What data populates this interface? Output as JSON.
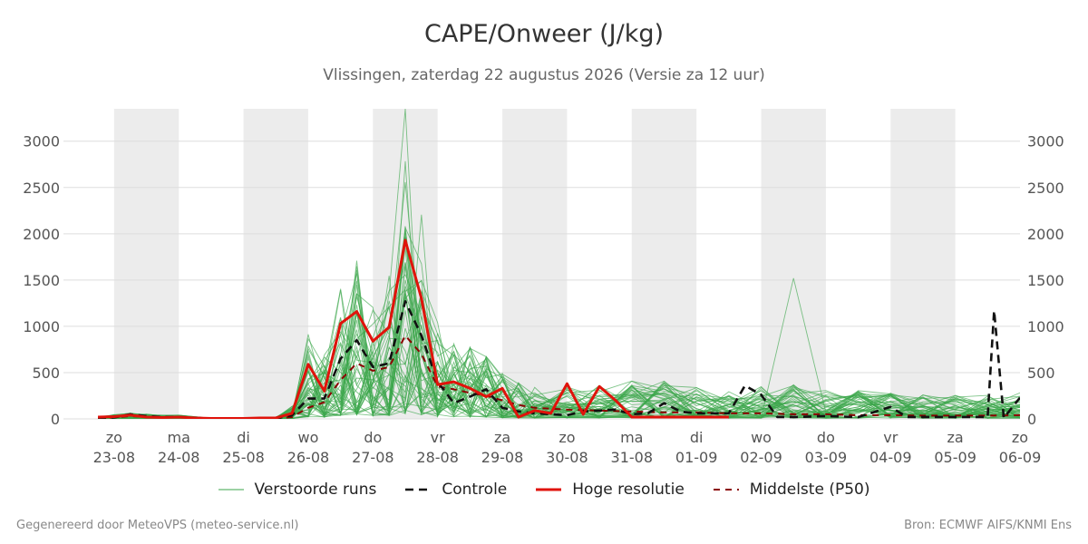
{
  "title": "CAPE/Onweer (J/kg)",
  "subtitle": "Vlissingen, zaterdag 22 augustus 2026 (Versie za 12 uur)",
  "footer_left": "Gegenereerd door MeteoVPS (meteo-service.nl)",
  "footer_right": "Bron: ECMWF AIFS/KNMI Ens",
  "legend": [
    {
      "label": "Verstoorde runs",
      "style": "thin",
      "color": "#3aa64a"
    },
    {
      "label": "Controle",
      "style": "dashed",
      "color": "#111111"
    },
    {
      "label": "Hoge resolutie",
      "style": "solid",
      "color": "#e0130b"
    },
    {
      "label": "Middelste (P50)",
      "style": "dashed",
      "color": "#8b0000"
    }
  ],
  "chart_data": {
    "type": "line",
    "x_unit": "days since 23-08 00:00",
    "xlim": [
      -0.25,
      14.0
    ],
    "ylim": [
      0,
      3350
    ],
    "yticks": [
      0,
      500,
      1000,
      1500,
      2000,
      2500,
      3000
    ],
    "grid": true,
    "shaded_days": [
      0,
      2,
      4,
      6,
      8,
      10,
      12,
      14
    ],
    "x_ticks": [
      {
        "day": "zo",
        "date": "23-08"
      },
      {
        "day": "ma",
        "date": "24-08"
      },
      {
        "day": "di",
        "date": "25-08"
      },
      {
        "day": "wo",
        "date": "26-08"
      },
      {
        "day": "do",
        "date": "27-08"
      },
      {
        "day": "vr",
        "date": "28-08"
      },
      {
        "day": "za",
        "date": "29-08"
      },
      {
        "day": "zo",
        "date": "30-08"
      },
      {
        "day": "ma",
        "date": "31-08"
      },
      {
        "day": "di",
        "date": "01-09"
      },
      {
        "day": "wo",
        "date": "02-09"
      },
      {
        "day": "do",
        "date": "03-09"
      },
      {
        "day": "vr",
        "date": "04-09"
      },
      {
        "day": "za",
        "date": "05-09"
      },
      {
        "day": "zo",
        "date": "06-09"
      }
    ],
    "series": [
      {
        "name": "Hoge resolutie",
        "color": "#e0130b",
        "width": 3,
        "dash": "",
        "x": [
          -0.25,
          0,
          0.25,
          0.5,
          0.75,
          1,
          1.25,
          1.5,
          1.75,
          2,
          2.25,
          2.5,
          2.75,
          3,
          3.25,
          3.5,
          3.75,
          4,
          4.25,
          4.5,
          4.75,
          5,
          5.25,
          5.5,
          5.75,
          6,
          6.25,
          6.5,
          6.75,
          7,
          7.25,
          7.5,
          7.75,
          8,
          8.25,
          8.5,
          8.75,
          9,
          9.25,
          9.5
        ],
        "y": [
          20,
          25,
          40,
          20,
          15,
          20,
          10,
          5,
          5,
          5,
          10,
          10,
          60,
          590,
          300,
          1030,
          1160,
          840,
          990,
          1930,
          1300,
          370,
          400,
          330,
          240,
          330,
          20,
          90,
          60,
          380,
          50,
          350,
          200,
          20,
          20,
          20,
          20,
          20,
          20,
          20
        ]
      },
      {
        "name": "Controle",
        "color": "#111111",
        "width": 2.6,
        "dash": "9,6",
        "x": [
          -0.25,
          0,
          0.25,
          0.5,
          0.75,
          1,
          1.5,
          2,
          2.5,
          2.75,
          3,
          3.25,
          3.5,
          3.75,
          4,
          4.25,
          4.5,
          4.75,
          5,
          5.25,
          5.5,
          5.75,
          6,
          6.25,
          6.5,
          6.75,
          7,
          7.25,
          7.5,
          7.75,
          8,
          8.25,
          8.5,
          8.75,
          9,
          9.25,
          9.5,
          9.75,
          10,
          10.25,
          10.5,
          11,
          11.5,
          12,
          12.25,
          12.5,
          13,
          13.25,
          13.5,
          13.6,
          13.75,
          14.0
        ],
        "y": [
          10,
          15,
          50,
          30,
          20,
          20,
          5,
          5,
          5,
          40,
          220,
          220,
          650,
          850,
          560,
          600,
          1270,
          900,
          400,
          170,
          240,
          320,
          120,
          80,
          60,
          50,
          40,
          80,
          90,
          100,
          50,
          60,
          170,
          80,
          60,
          60,
          60,
          360,
          260,
          20,
          20,
          30,
          20,
          130,
          20,
          20,
          20,
          20,
          20,
          1170,
          10,
          230
        ]
      },
      {
        "name": "Middelste (P50)",
        "color": "#8b0000",
        "width": 2,
        "dash": "7,6",
        "x": [
          -0.25,
          0,
          0.25,
          0.5,
          1,
          1.5,
          2,
          2.5,
          2.75,
          3,
          3.25,
          3.5,
          3.75,
          4,
          4.25,
          4.5,
          4.75,
          5,
          5.25,
          5.5,
          5.75,
          6,
          6.25,
          6.5,
          7,
          7.5,
          8,
          8.5,
          9,
          9.5,
          10,
          10.5,
          11,
          11.5,
          12,
          12.5,
          13,
          13.5,
          14
        ],
        "y": [
          10,
          15,
          30,
          20,
          15,
          5,
          5,
          5,
          20,
          120,
          180,
          420,
          600,
          520,
          560,
          900,
          700,
          350,
          320,
          280,
          250,
          200,
          150,
          120,
          100,
          90,
          80,
          70,
          70,
          60,
          60,
          50,
          50,
          40,
          40,
          35,
          35,
          35,
          40
        ]
      }
    ]
  }
}
